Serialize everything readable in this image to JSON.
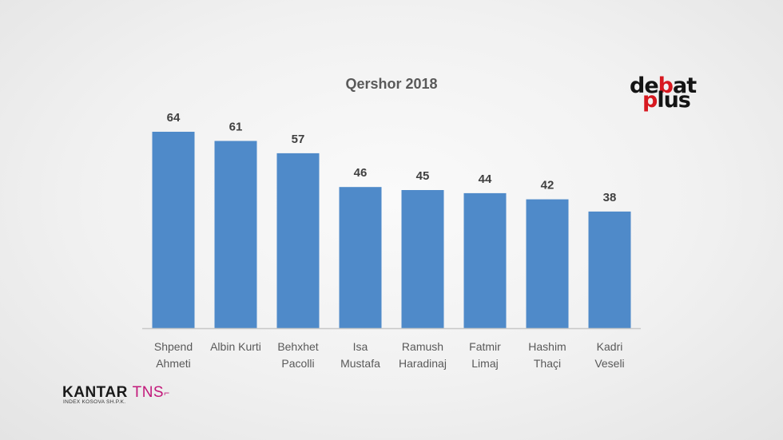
{
  "chart_data": {
    "type": "bar",
    "title": "Qershor 2018",
    "categories": [
      [
        "Shpend",
        "Ahmeti"
      ],
      [
        "Albin Kurti"
      ],
      [
        "Behxhet",
        "Pacolli"
      ],
      [
        "Isa",
        "Mustafa"
      ],
      [
        "Ramush",
        "Haradinaj"
      ],
      [
        "Fatmir",
        "Limaj"
      ],
      [
        "Hashim",
        "Thaçi"
      ],
      [
        "Kadri",
        "Veseli"
      ]
    ],
    "values": [
      64,
      61,
      57,
      46,
      45,
      44,
      42,
      38
    ],
    "xlabel": "",
    "ylabel": "",
    "ylim": [
      0,
      64
    ],
    "grid": false,
    "legend": "none",
    "colors": {
      "bar": "#4f8ac9",
      "axis": "#c8c8c8"
    }
  },
  "logos": {
    "debat": {
      "word1_dark": "de",
      "word1_red": "b",
      "word1_dark_end": "at",
      "word2_red": "p",
      "word2_dark": "lus",
      "colors": {
        "dark": "#141414",
        "red": "#d71920"
      }
    },
    "kantar": {
      "main": "KANTAR",
      "accent": "TNS",
      "mark": "⌐",
      "subtitle": "INDEX KOSOVA SH.P.K.",
      "colors": {
        "accent": "#c2187a"
      }
    }
  }
}
